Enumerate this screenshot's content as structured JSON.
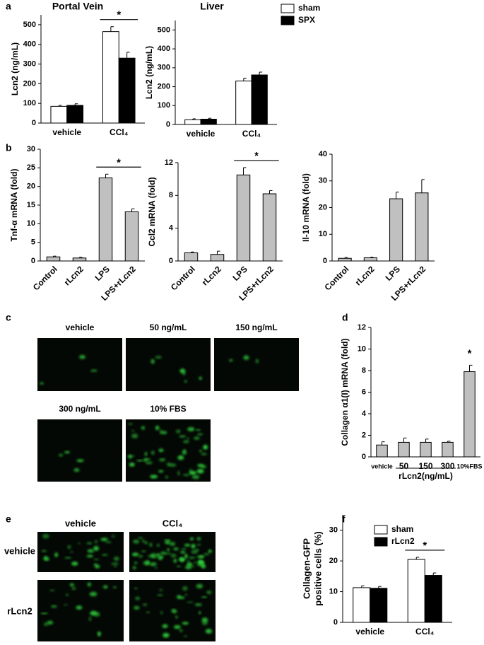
{
  "panel_labels": [
    "a",
    "b",
    "c",
    "d",
    "e",
    "f"
  ],
  "panel_c": {
    "images": [
      "vehicle",
      "50 ng/mL",
      "150 ng/mL",
      "300 ng/mL",
      "10% FBS"
    ]
  },
  "panel_e": {
    "columns": [
      "vehicle",
      "CCl₄"
    ],
    "rows": [
      "vehicle",
      "rLcn2"
    ]
  },
  "chart_data": [
    {
      "type": "bar",
      "title": "Portal Vein",
      "ylabel": "Lcn2 (ng/mL)",
      "categories": [
        "vehicle",
        "CCl₄"
      ],
      "series": [
        {
          "color": "#ffffff",
          "values": [
            85,
            465
          ],
          "errors": [
            5,
            25
          ]
        },
        {
          "color": "#000000",
          "values": [
            90,
            330
          ],
          "errors": [
            8,
            30
          ]
        }
      ],
      "ylim": [
        0,
        550
      ],
      "yticks": [
        0,
        100,
        200,
        300,
        400,
        500
      ],
      "annotations": [
        {
          "text": "*",
          "span": [
            "CCl₄"
          ],
          "bracket": true
        }
      ]
    },
    {
      "type": "bar",
      "title": "Liver",
      "ylabel": "Lcn2 (ng/mL)",
      "categories": [
        "vehicle",
        "CCl₄"
      ],
      "series": [
        {
          "name": "sham",
          "color": "#ffffff",
          "values": [
            25,
            230
          ],
          "errors": [
            5,
            15
          ]
        },
        {
          "name": "SPX",
          "color": "#000000",
          "values": [
            28,
            262
          ],
          "errors": [
            5,
            15
          ]
        }
      ],
      "ylim": [
        0,
        550
      ],
      "yticks": [
        0,
        100,
        200,
        300,
        400,
        500
      ],
      "legend": "upper right"
    },
    {
      "type": "bar",
      "ylabel": "Tnf-α mRNA (fold)",
      "categories": [
        "Control",
        "rLcn2",
        "LPS",
        "LPS+rLcn2"
      ],
      "series": [
        {
          "color": "#c0c0c0",
          "values": [
            1.1,
            0.8,
            22.3,
            13.2
          ],
          "errors": [
            0.2,
            0.2,
            1,
            0.8
          ]
        }
      ],
      "ylim": [
        0,
        30
      ],
      "yticks": [
        0,
        5,
        10,
        15,
        20,
        25,
        30
      ],
      "annotations": [
        {
          "text": "*",
          "span": [
            "LPS",
            "LPS+rLcn2"
          ],
          "bracket": true
        }
      ]
    },
    {
      "type": "bar",
      "ylabel": "Ccl2 mRNA (fold)",
      "categories": [
        "Control",
        "rLcn2",
        "LPS",
        "LPS+rLcn2"
      ],
      "series": [
        {
          "color": "#c0c0c0",
          "values": [
            1.0,
            0.8,
            10.5,
            8.2
          ],
          "errors": [
            0.1,
            0.4,
            0.9,
            0.4
          ]
        }
      ],
      "ylim": [
        0,
        12
      ],
      "yticks": [
        0,
        4,
        8,
        12
      ],
      "annotations": [
        {
          "text": "*",
          "span": [
            "LPS",
            "LPS+rLcn2"
          ],
          "bracket": true
        }
      ]
    },
    {
      "type": "bar",
      "ylabel": "Il-10 mRNA (fold)",
      "categories": [
        "Control",
        "rLcn2",
        "LPS",
        "LPS+rLcn2"
      ],
      "series": [
        {
          "color": "#c0c0c0",
          "values": [
            1.0,
            1.2,
            23.3,
            25.5
          ],
          "errors": [
            0.3,
            0.2,
            2.5,
            5
          ]
        }
      ],
      "ylim": [
        0,
        40
      ],
      "yticks": [
        0,
        10,
        20,
        30,
        40
      ]
    },
    {
      "type": "bar",
      "ylabel": "Collagen α1(I) mRNA (fold)",
      "xlabel": "rLcn2(ng/mL)",
      "categories": [
        "vehicle",
        "50",
        "150",
        "300",
        "10%FBS"
      ],
      "series": [
        {
          "color": "#c0c0c0",
          "values": [
            1.1,
            1.35,
            1.35,
            1.35,
            7.9
          ],
          "errors": [
            0.3,
            0.4,
            0.3,
            0.1,
            0.6
          ]
        }
      ],
      "ylim": [
        0,
        12
      ],
      "yticks": [
        0,
        2,
        4,
        6,
        8,
        10,
        12
      ],
      "annotations": [
        {
          "text": "*",
          "span": [
            "10%FBS"
          ],
          "bracket": false
        }
      ]
    },
    {
      "type": "bar",
      "ylabel": [
        "Collagen-GFP",
        "positive cells (%)"
      ],
      "categories": [
        "vehicle",
        "CCl₄"
      ],
      "series": [
        {
          "name": "sham",
          "color": "#ffffff",
          "values": [
            11.3,
            20.5
          ],
          "errors": [
            0.6,
            0.7
          ]
        },
        {
          "name": "rLcn2",
          "color": "#000000",
          "values": [
            11.1,
            15.3
          ],
          "errors": [
            0.6,
            0.8
          ]
        }
      ],
      "ylim": [
        0,
        35
      ],
      "yticks": [
        0,
        10,
        20,
        30
      ],
      "legend": "upper right",
      "annotations": [
        {
          "text": "*",
          "span": [
            "CCl₄"
          ],
          "bracket": true
        }
      ]
    }
  ]
}
